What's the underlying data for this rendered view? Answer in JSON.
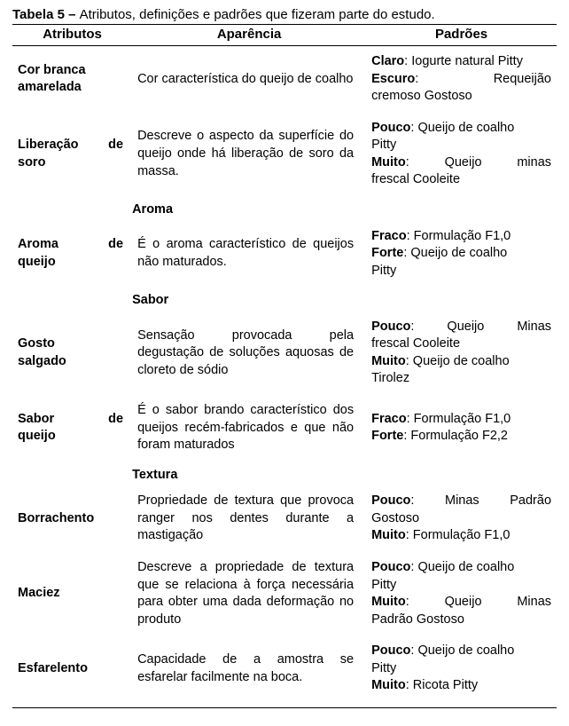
{
  "caption_bold": "Tabela 5 – ",
  "caption_rest": "Atributos, definições e padrões que fizeram parte do estudo.",
  "headers": {
    "c1": "Atributos",
    "c2": "Aparência",
    "c3": "Padrões"
  },
  "rows": {
    "cor": {
      "attr_l1": "Cor branca",
      "attr_l2": "amarelada",
      "def": "Cor característica do queijo de coalho",
      "p1b": "Claro",
      "p1t": ": Iogurte natural Pitty",
      "p2b": "Escuro",
      "p2s": ":",
      "p2t": "Requeijão",
      "p3": "cremoso Gostoso"
    },
    "soro": {
      "attr_l1": "Liberação de",
      "attr_l2": "soro",
      "def": "Descreve o aspecto da superfície do queijo onde há liberação de soro da massa.",
      "p1b": "Pouco",
      "p1t": ": Queijo de coalho",
      "p1c": "Pitty",
      "p2b": "Muito",
      "p2s": ":",
      "p2t1": "Queijo",
      "p2t2": "minas",
      "p2c": "frescal Cooleite"
    },
    "sec_aroma": "Aroma",
    "aroma": {
      "attr_l1": "Aroma",
      "attr_mid": "de",
      "attr_l2": "queijo",
      "def": "É o aroma característico de queijos não maturados.",
      "p1b": "Fraco",
      "p1t": ": Formulação F1,0",
      "p2b": "Forte",
      "p2t": ": Queijo de coalho",
      "p2c": "Pitty"
    },
    "sec_sabor": "Sabor",
    "gosto": {
      "attr_l1": "Gosto",
      "attr_l2": "salgado",
      "def": "Sensação provocada pela degustação de soluções aquosas de cloreto de sódio",
      "p1b": "Pouco",
      "p1s": ":",
      "p1t1": "Queijo",
      "p1t2": "Minas",
      "p1c": "frescal Cooleite",
      "p2b": "Muito",
      "p2t": ": Queijo de coalho",
      "p2c": "Tirolez"
    },
    "saborq": {
      "attr_l1": "Sabor",
      "attr_mid": "de",
      "attr_l2": "queijo",
      "def": "É o sabor brando característico dos queijos recém-fabricados e que não foram maturados",
      "p1b": "Fraco",
      "p1t": ": Formulação F1,0",
      "p2b": "Forte",
      "p2t": ": Formulação F2,2"
    },
    "sec_textura": "Textura",
    "borr": {
      "attr": "Borrachento",
      "def": "Propriedade de textura que provoca ranger nos dentes durante a mastigação",
      "p1b": "Pouco",
      "p1s": ":",
      "p1t1": "Minas",
      "p1t2": "Padrão",
      "p1c": "Gostoso",
      "p2b": "Muito",
      "p2t": ": Formulação F1,0"
    },
    "maciez": {
      "attr": "Maciez",
      "def": "Descreve a propriedade de textura que se relaciona à força necessária para obter uma dada deformação no produto",
      "p1b": "Pouco",
      "p1t": ": Queijo de coalho",
      "p1c": "Pitty",
      "p2b": "Muito",
      "p2s": ":",
      "p2t1": "Queijo",
      "p2t2": "Minas",
      "p2c": "Padrão Gostoso"
    },
    "esf": {
      "attr": "Esfarelento",
      "def": "Capacidade de a amostra se esfarelar facilmente na boca.",
      "p1b": "Pouco",
      "p1t": ": Queijo de coalho",
      "p1c": "Pitty",
      "p2b": "Muito",
      "p2t": ": Ricota Pitty"
    }
  }
}
